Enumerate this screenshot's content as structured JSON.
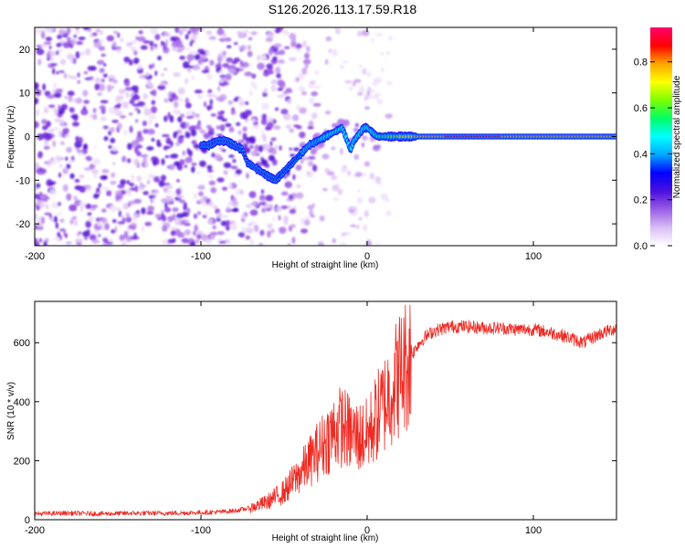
{
  "chart_data": [
    {
      "type": "heatmap",
      "title": "S126.2026.113.17.59.R18",
      "xlabel": "Height of straight line (km)",
      "ylabel": "Frequency (Hz)",
      "xlim": [
        -200,
        150
      ],
      "ylim": [
        -25,
        25
      ],
      "xticks": [
        -200,
        -100,
        0,
        100
      ],
      "yticks": [
        -20,
        -10,
        0,
        10,
        20
      ],
      "colorbar": {
        "label": "Normalized spectral amplitude",
        "range": [
          0,
          0.95
        ],
        "ticks": [
          0.0,
          0.2,
          0.4,
          0.6,
          0.8
        ],
        "colors": [
          "#ffffff",
          "#d9bdf5",
          "#9a5ce6",
          "#4a10dd",
          "#0000ff",
          "#00a8ff",
          "#00ffff",
          "#00ff66",
          "#7dff00",
          "#ffff00",
          "#ffa500",
          "#ff0000",
          "#ff006e"
        ]
      },
      "signal_ridge": {
        "x": [
          -100,
          -95,
          -90,
          -85,
          -80,
          -75,
          -72,
          -68,
          -64,
          -60,
          -55,
          -50,
          -45,
          -40,
          -35,
          -30,
          -25,
          -20,
          -15,
          -12,
          -10,
          -8,
          -6,
          -4,
          -2,
          0,
          3,
          6,
          10,
          15,
          20,
          30,
          40,
          60,
          80,
          100,
          120,
          150
        ],
        "y": [
          -2,
          -2,
          -1,
          -1,
          -2,
          -3,
          -6,
          -7,
          -8,
          -9,
          -10,
          -8,
          -6,
          -4,
          -2,
          -1,
          0,
          1,
          2,
          -1,
          -3,
          -1,
          0,
          1,
          2,
          2,
          1,
          0,
          0,
          0,
          0,
          0,
          0,
          0,
          0,
          0,
          0,
          0
        ]
      }
    },
    {
      "type": "line",
      "xlabel": "Height of straight line (km)",
      "ylabel": "SNR (10 * v/v)",
      "xlim": [
        -200,
        150
      ],
      "ylim": [
        0,
        740
      ],
      "xticks": [
        -200,
        -100,
        0,
        100
      ],
      "yticks": [
        0,
        200,
        400,
        600
      ],
      "color": "#ee2a22",
      "series": [
        {
          "name": "SNR",
          "x": [
            -200,
            -180,
            -160,
            -140,
            -120,
            -100,
            -90,
            -80,
            -70,
            -60,
            -50,
            -40,
            -30,
            -20,
            -15,
            -10,
            -5,
            0,
            5,
            10,
            15,
            20,
            25,
            30,
            35,
            40,
            50,
            60,
            70,
            80,
            90,
            100,
            110,
            120,
            130,
            140,
            150
          ],
          "values": [
            20,
            22,
            20,
            22,
            22,
            24,
            26,
            30,
            40,
            60,
            95,
            160,
            230,
            300,
            320,
            290,
            280,
            285,
            340,
            390,
            450,
            500,
            540,
            590,
            620,
            640,
            655,
            655,
            650,
            650,
            645,
            645,
            635,
            620,
            600,
            630,
            650
          ]
        }
      ]
    }
  ]
}
